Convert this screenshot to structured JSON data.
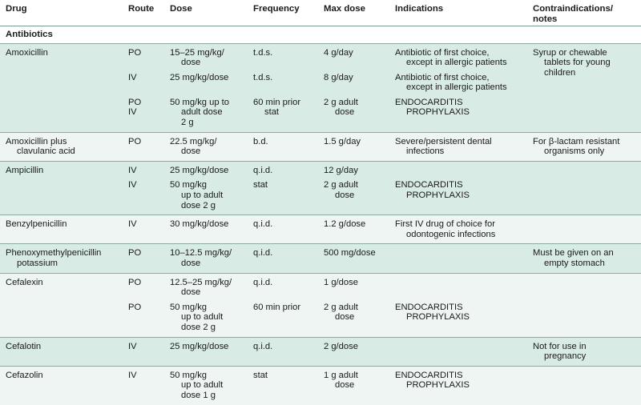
{
  "headers": {
    "drug": "Drug",
    "route": "Route",
    "dose": "Dose",
    "frequency": "Frequency",
    "max_dose": "Max dose",
    "indications": "Indications",
    "notes_1": "Contraindications/",
    "notes_2": "notes"
  },
  "section": "Antibiotics",
  "drugs": [
    {
      "name": [
        "Amoxicillin"
      ],
      "entries": [
        {
          "route": [
            "PO"
          ],
          "dose": [
            "15–25 mg/kg/",
            "dose"
          ],
          "freq": [
            "t.d.s."
          ],
          "max": [
            "4 g/day"
          ],
          "ind": [
            "Antibiotic of first choice,",
            "except in allergic patients"
          ]
        },
        {
          "route": [
            "IV"
          ],
          "dose": [
            "25 mg/kg/dose"
          ],
          "freq": [
            "t.d.s."
          ],
          "max": [
            "8 g/day"
          ],
          "ind": [
            "Antibiotic of first choice,",
            "except in allergic patients"
          ]
        },
        {
          "route": [
            "PO",
            "IV"
          ],
          "dose": [
            "50 mg/kg up to",
            "adult dose",
            "2 g"
          ],
          "freq": [
            "60 min prior",
            "stat"
          ],
          "max": [
            "2 g adult",
            "dose"
          ],
          "ind": [
            "ENDOCARDITIS",
            "PROPHYLAXIS"
          ]
        }
      ],
      "notes": [
        "Syrup or chewable",
        "tablets for young",
        "children"
      ]
    },
    {
      "name": [
        "Amoxicillin plus",
        "clavulanic acid"
      ],
      "entries": [
        {
          "route": [
            "PO"
          ],
          "dose": [
            "22.5 mg/kg/",
            "dose"
          ],
          "freq": [
            "b.d."
          ],
          "max": [
            "1.5 g/day"
          ],
          "ind": [
            "Severe/persistent dental",
            "infections"
          ]
        }
      ],
      "notes": [
        "For β-lactam resistant",
        "organisms only"
      ]
    },
    {
      "name": [
        "Ampicillin"
      ],
      "entries": [
        {
          "route": [
            "IV"
          ],
          "dose": [
            "25 mg/kg/dose"
          ],
          "freq": [
            "q.i.d."
          ],
          "max": [
            "12 g/day"
          ],
          "ind": []
        },
        {
          "route": [
            "IV"
          ],
          "dose": [
            "50 mg/kg",
            "up to adult",
            "dose 2 g"
          ],
          "freq": [
            "stat"
          ],
          "max": [
            "2 g adult",
            "dose"
          ],
          "ind": [
            "ENDOCARDITIS",
            "PROPHYLAXIS"
          ]
        }
      ],
      "notes": []
    },
    {
      "name": [
        "Benzylpenicillin"
      ],
      "entries": [
        {
          "route": [
            "IV"
          ],
          "dose": [
            "30 mg/kg/dose"
          ],
          "freq": [
            "q.i.d."
          ],
          "max": [
            "1.2 g/dose"
          ],
          "ind": [
            "First IV drug of choice for",
            "odontogenic infections"
          ]
        }
      ],
      "notes": []
    },
    {
      "name": [
        "Phenoxymethylpenicillin",
        "potassium"
      ],
      "entries": [
        {
          "route": [
            "PO"
          ],
          "dose": [
            "10–12.5 mg/kg/",
            "dose"
          ],
          "freq": [
            "q.i.d."
          ],
          "max": [
            "500 mg/dose"
          ],
          "ind": []
        }
      ],
      "notes": [
        "Must be given on an",
        "empty stomach"
      ]
    },
    {
      "name": [
        "Cefalexin"
      ],
      "entries": [
        {
          "route": [
            "PO"
          ],
          "dose": [
            "12.5–25 mg/kg/",
            "dose"
          ],
          "freq": [
            "q.i.d."
          ],
          "max": [
            "1 g/dose"
          ],
          "ind": []
        },
        {
          "route": [
            "PO"
          ],
          "dose": [
            "50 mg/kg",
            "up to adult",
            "dose 2 g"
          ],
          "freq": [
            "60 min prior"
          ],
          "max": [
            "2 g adult",
            "dose"
          ],
          "ind": [
            "ENDOCARDITIS",
            "PROPHYLAXIS"
          ]
        }
      ],
      "notes": []
    },
    {
      "name": [
        "Cefalotin"
      ],
      "entries": [
        {
          "route": [
            "IV"
          ],
          "dose": [
            "25 mg/kg/dose"
          ],
          "freq": [
            "q.i.d."
          ],
          "max": [
            "2 g/dose"
          ],
          "ind": []
        }
      ],
      "notes": [
        "Not for use in",
        "pregnancy"
      ]
    },
    {
      "name": [
        "Cefazolin"
      ],
      "entries": [
        {
          "route": [
            "IV"
          ],
          "dose": [
            "50 mg/kg",
            "up to adult",
            "dose 1 g"
          ],
          "freq": [
            "stat"
          ],
          "max": [
            "1 g adult",
            "dose"
          ],
          "ind": [
            "ENDOCARDITIS",
            "PROPHYLAXIS"
          ]
        }
      ],
      "notes": []
    }
  ]
}
